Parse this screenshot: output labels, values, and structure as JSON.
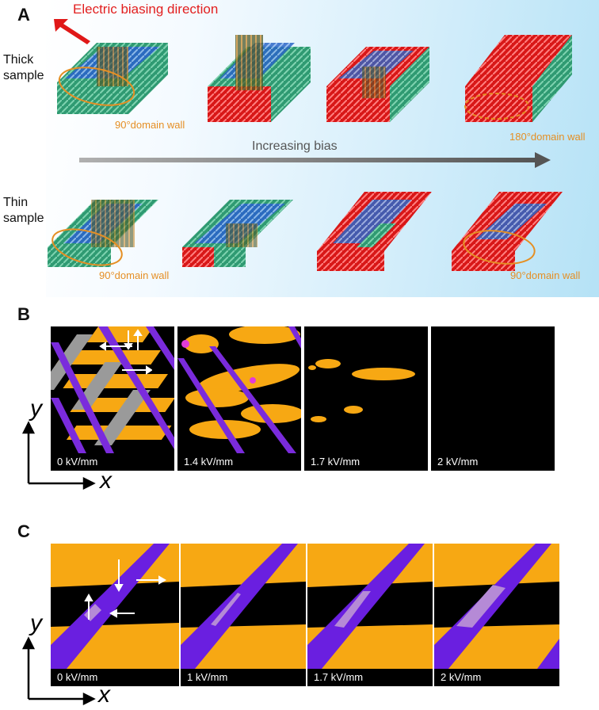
{
  "panels": {
    "a": "A",
    "b": "B",
    "c": "C"
  },
  "panelA": {
    "electric_label": "Electric biasing direction",
    "thick_label_line1": "Thick",
    "thick_label_line2": "sample",
    "thin_label_line1": "Thin",
    "thin_label_line2": "sample",
    "bias_label": "Increasing bias",
    "wall90_label": "90°domain wall",
    "wall180_label": "180°domain wall",
    "colors": {
      "green": "#3aa57a",
      "blue": "#2b66c7",
      "red": "#e01818",
      "orange": "#e58f24",
      "olive": "#4d5a2a"
    }
  },
  "panelB": {
    "frames": [
      "0 kV/mm",
      "1.4 kV/mm",
      "1.7 kV/mm",
      "2 kV/mm"
    ],
    "axis_x": "x",
    "axis_y": "y",
    "colors": {
      "orange": "#f7a813",
      "purple": "#7a2bdc",
      "gray": "#9a9a9a",
      "magenta": "#e23bd8",
      "black": "#000000"
    }
  },
  "panelC": {
    "frames": [
      "0 kV/mm",
      "1 kV/mm",
      "1.7 kV/mm",
      "2 kV/mm"
    ],
    "axis_x": "x",
    "axis_y": "y",
    "colors": {
      "orange": "#f7a813",
      "purple": "#6a1fe0",
      "lilac": "#b58ad6",
      "black": "#000000"
    }
  }
}
